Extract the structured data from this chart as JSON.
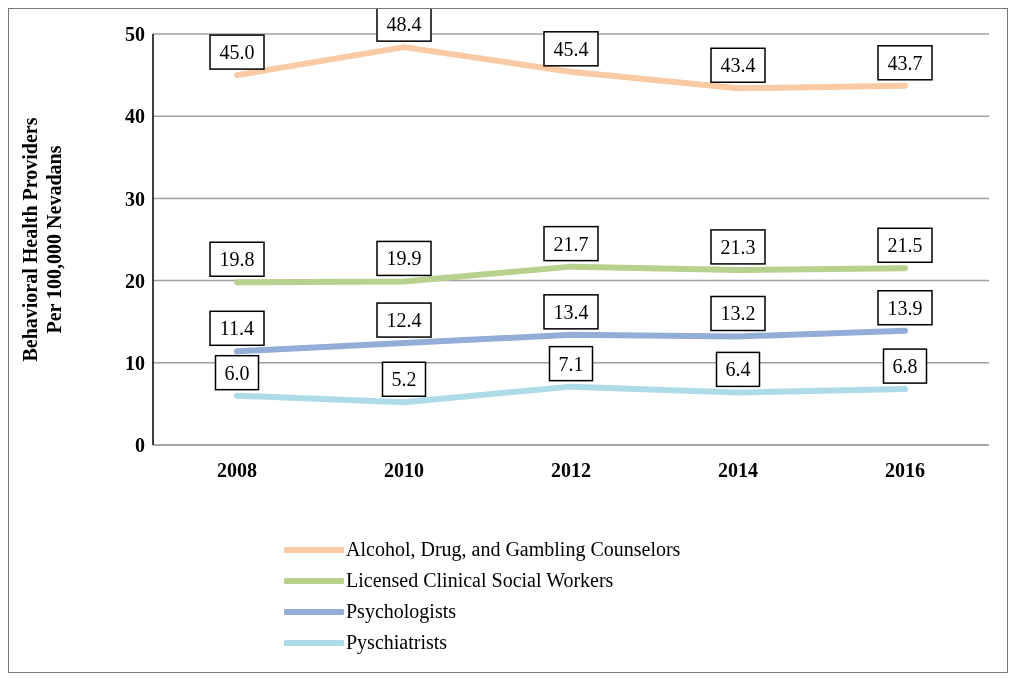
{
  "chart_data": {
    "type": "line",
    "ylabel": "Behavioral Health Providers Per 100,000 Nevadans",
    "categories": [
      "2008",
      "2010",
      "2012",
      "2014",
      "2016"
    ],
    "series": [
      {
        "name": "Alcohol, Drug, and Gambling Counselors",
        "color": "#f9caa3",
        "values": [
          45.0,
          48.4,
          45.4,
          43.4,
          43.7
        ],
        "value_labels": [
          "45.0",
          "48.4",
          "45.4",
          "43.4",
          "43.7"
        ]
      },
      {
        "name": "Licensed Clinical Social Workers",
        "color": "#b9d18e",
        "values": [
          19.8,
          19.9,
          21.7,
          21.3,
          21.5
        ],
        "value_labels": [
          "19.8",
          "19.9",
          "21.7",
          "21.3",
          "21.5"
        ]
      },
      {
        "name": "Psychologists",
        "color": "#93add8",
        "values": [
          11.4,
          12.4,
          13.4,
          13.2,
          13.9
        ],
        "value_labels": [
          "11.4",
          "12.4",
          "13.4",
          "13.2",
          "13.9"
        ]
      },
      {
        "name": "Pyschiatrists",
        "color": "#addbe8",
        "values": [
          6.0,
          5.2,
          7.1,
          6.4,
          6.8
        ],
        "value_labels": [
          "6.0",
          "5.2",
          "7.1",
          "6.4",
          "6.8"
        ]
      }
    ],
    "ylim": [
      0,
      50
    ],
    "yticks": [
      0,
      10,
      20,
      30,
      40,
      50
    ],
    "grid": "y",
    "legend": "bottom",
    "marker": "none",
    "line_style": "solid"
  }
}
